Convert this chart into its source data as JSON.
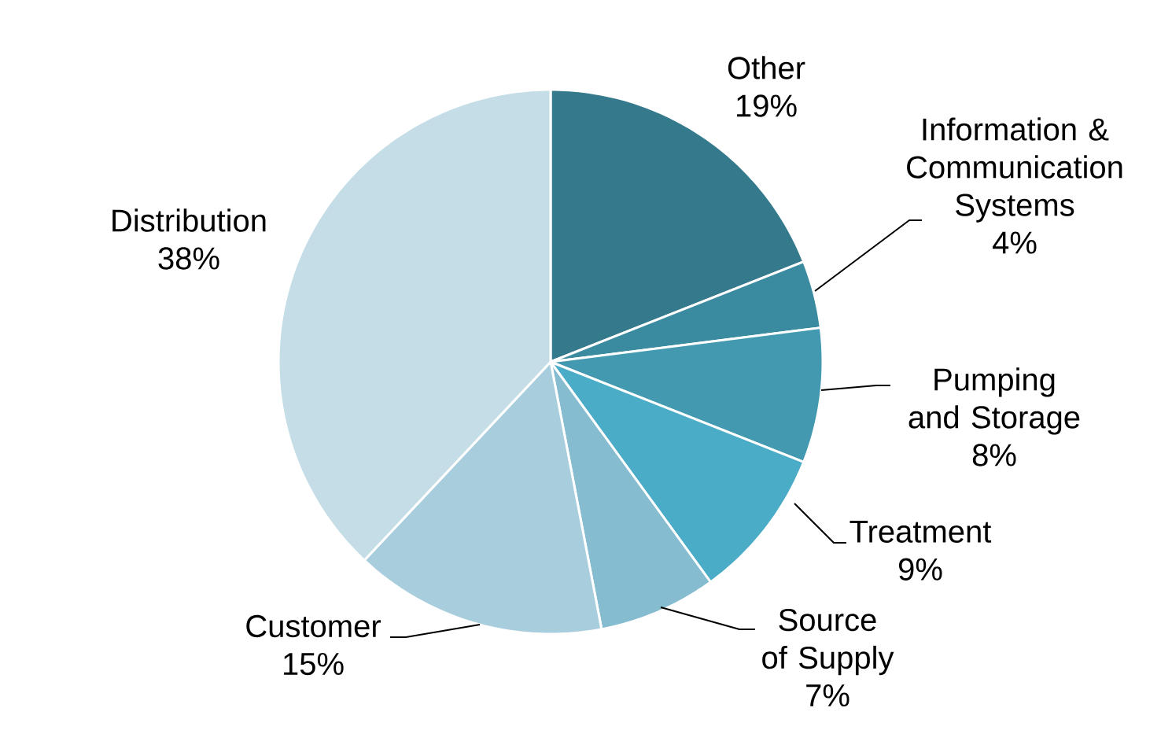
{
  "chart_data": {
    "type": "pie",
    "categories": [
      "Other",
      "Information  & Communication Systems",
      "Pumping and Storage",
      "Treatment",
      "Source of Supply",
      "Customer",
      "Distribution"
    ],
    "values": [
      19,
      4,
      8,
      9,
      7,
      15,
      38
    ],
    "value_labels": [
      "19%",
      "4%",
      "8%",
      "9%",
      "7%",
      "15%",
      "38%"
    ],
    "colors": [
      "#347a8c",
      "#3a8aa0",
      "#4399b0",
      "#4aacc6",
      "#85bccf",
      "#a8cedd",
      "#c4dde6"
    ]
  }
}
